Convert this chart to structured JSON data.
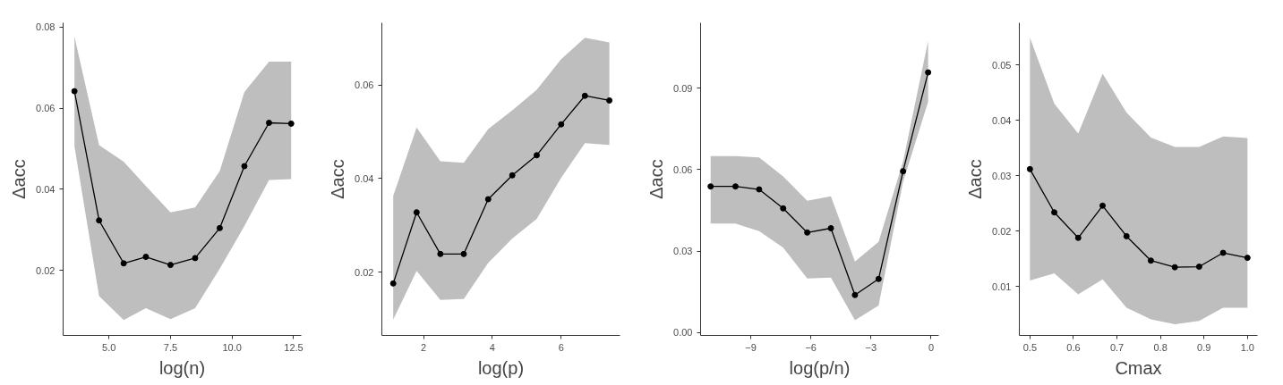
{
  "chart_data": [
    {
      "type": "line",
      "xlabel": "log(n)",
      "ylabel": "Δacc",
      "xlim": [
        3.14,
        12.81
      ],
      "ylim": [
        0.0039,
        0.0811
      ],
      "xticks": [
        {
          "value": 5,
          "label": "5.0"
        },
        7.5,
        {
          "value": 10,
          "label": "10.0"
        },
        12.5
      ],
      "yticks": [
        0.02,
        0.04,
        0.06,
        0.08
      ],
      "marker": "circle",
      "line_style": "solid",
      "series": [
        {
          "color": "#000000",
          "x": [
            3.6,
            4.6,
            5.6,
            6.5,
            7.5,
            8.5,
            9.5,
            10.5,
            11.5,
            12.4
          ],
          "values": [
            0.0642,
            0.0323,
            0.0217,
            0.0233,
            0.0213,
            0.023,
            0.0304,
            0.0457,
            0.0564,
            0.0562
          ],
          "lower": [
            0.0506,
            0.0136,
            0.0077,
            0.0106,
            0.0079,
            0.0106,
            0.0204,
            0.0309,
            0.0423,
            0.0425
          ],
          "upper": [
            0.0777,
            0.0509,
            0.0468,
            0.0408,
            0.0343,
            0.0355,
            0.0445,
            0.064,
            0.0715,
            0.0715
          ]
        }
      ]
    },
    {
      "type": "line",
      "xlabel": "log(p)",
      "ylabel": "Δacc",
      "xlim": [
        0.79,
        7.71
      ],
      "ylim": [
        0.0065,
        0.0733
      ],
      "xticks": [
        2,
        4,
        6
      ],
      "yticks": [
        0.02,
        0.04,
        0.06
      ],
      "marker": "circle",
      "line_style": "solid",
      "series": [
        {
          "color": "#000000",
          "x": [
            1.12,
            1.8,
            2.49,
            3.17,
            3.88,
            4.58,
            5.29,
            6.0,
            6.69,
            7.4
          ],
          "values": [
            0.0176,
            0.0328,
            0.0239,
            0.0239,
            0.0356,
            0.0407,
            0.045,
            0.0516,
            0.0577,
            0.0567
          ],
          "lower": [
            0.0099,
            0.0203,
            0.0141,
            0.0143,
            0.022,
            0.0272,
            0.0314,
            0.0402,
            0.0476,
            0.0472
          ],
          "upper": [
            0.0363,
            0.0509,
            0.0437,
            0.0434,
            0.0506,
            0.0546,
            0.059,
            0.0655,
            0.0701,
            0.0691
          ]
        }
      ]
    },
    {
      "type": "line",
      "xlabel": "log(p/n)",
      "ylabel": "Δacc",
      "xlim": [
        -11.5,
        0.38
      ],
      "ylim": [
        -0.0011,
        0.1141
      ],
      "xticks": [
        -9,
        -6,
        -3,
        0
      ],
      "yticks": [
        {
          "value": 0,
          "label": "0.00"
        },
        0.03,
        0.06,
        0.09
      ],
      "marker": "circle",
      "line_style": "solid",
      "series": [
        {
          "color": "#000000",
          "x": [
            -11.0,
            -9.76,
            -8.58,
            -7.38,
            -6.18,
            -5.0,
            -3.8,
            -2.62,
            -1.4,
            -0.15
          ],
          "values": [
            0.0538,
            0.0538,
            0.0527,
            0.0457,
            0.0368,
            0.0384,
            0.0138,
            0.0197,
            0.0594,
            0.0958
          ],
          "lower": [
            0.0401,
            0.0401,
            0.0373,
            0.0312,
            0.0199,
            0.0202,
            0.0045,
            0.0099,
            0.0555,
            0.085
          ],
          "upper": [
            0.065,
            0.065,
            0.0645,
            0.0575,
            0.0485,
            0.0502,
            0.0261,
            0.0334,
            0.063,
            0.1074
          ]
        }
      ]
    },
    {
      "type": "line",
      "xlabel": "Cmax",
      "ylabel": "Δacc",
      "xlim": [
        0.4756,
        1.023
      ],
      "ylim": [
        0.0012,
        0.0576
      ],
      "xticks": [
        0.5,
        0.6,
        0.7,
        0.8,
        0.9,
        {
          "value": 1,
          "label": "1.0"
        }
      ],
      "yticks": [
        0.01,
        0.02,
        0.03,
        0.04,
        0.05
      ],
      "marker": "circle",
      "line_style": "solid",
      "series": [
        {
          "color": "#000000",
          "x": [
            0.5,
            0.556,
            0.611,
            0.667,
            0.722,
            0.778,
            0.833,
            0.889,
            0.944,
            1.0
          ],
          "values": [
            0.0312,
            0.0234,
            0.0188,
            0.0246,
            0.0191,
            0.0147,
            0.0135,
            0.0136,
            0.0161,
            0.0152
          ],
          "lower": [
            0.0111,
            0.0124,
            0.0086,
            0.0113,
            0.0062,
            0.0041,
            0.0032,
            0.0038,
            0.0062,
            0.0062
          ],
          "upper": [
            0.0549,
            0.043,
            0.0376,
            0.0484,
            0.0414,
            0.0369,
            0.0352,
            0.0352,
            0.0371,
            0.0368
          ]
        }
      ]
    }
  ]
}
